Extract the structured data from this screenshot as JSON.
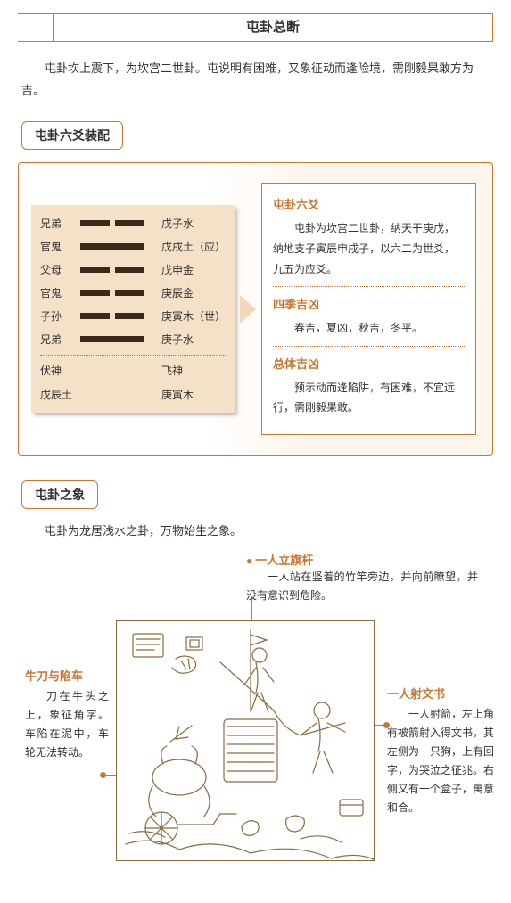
{
  "title": "屯卦总断",
  "intro": "屯卦坎上震下，为坎宫二世卦。屯说明有困难，又象征动而逢险境，需刚毅果敢方为吉。",
  "section1_label": "屯卦六爻装配",
  "yao_rows": [
    {
      "left": "兄弟",
      "type": "broken",
      "right": "戊子水"
    },
    {
      "left": "官鬼",
      "type": "solid",
      "right": "戊戌土（应）"
    },
    {
      "left": "父母",
      "type": "broken",
      "right": "戊申金"
    },
    {
      "left": "官鬼",
      "type": "broken",
      "right": "庚辰金"
    },
    {
      "left": "子孙",
      "type": "broken",
      "right": "庚寅木（世）"
    },
    {
      "left": "兄弟",
      "type": "solid",
      "right": "庚子水"
    }
  ],
  "yao_sub": [
    {
      "left": "伏神",
      "right": "飞神"
    },
    {
      "left": "戊辰土",
      "right": "庚寅木"
    }
  ],
  "info": {
    "t1": "屯卦六爻",
    "p1": "屯卦为坎宫二世卦，纳天干庚戊，纳地支子寅辰申戌子，以六二为世爻，九五为应爻。",
    "t2": "四季吉凶",
    "p2": "春吉，夏凶，秋吉，冬平。",
    "t3": "总体吉凶",
    "p3": "预示动而逢陷阱，有困难，不宜远行，需刚毅果敢。"
  },
  "section2_label": "屯卦之象",
  "xiang_intro": "屯卦为龙居浅水之卦，万物始生之象。",
  "callouts": {
    "top": {
      "title": "一人立旗杆",
      "text": "一人站在竖着的竹竿旁边，并向前瞭望，并没有意识到危险。"
    },
    "left": {
      "title": "牛刀与陷车",
      "text": "刀在牛头之上，象征角字。车陷在泥中，车轮无法转动。"
    },
    "right": {
      "title": "一人射文书",
      "text": "一人射箭，左上角有被箭射入得文书，其左侧为一只狗，上有回字，为哭泣之征兆。右侧又有一个盒子，寓意和合。"
    }
  },
  "colors": {
    "accent": "#c87830",
    "panel": "#f5e0c8",
    "ink": "#8a6a3e"
  }
}
